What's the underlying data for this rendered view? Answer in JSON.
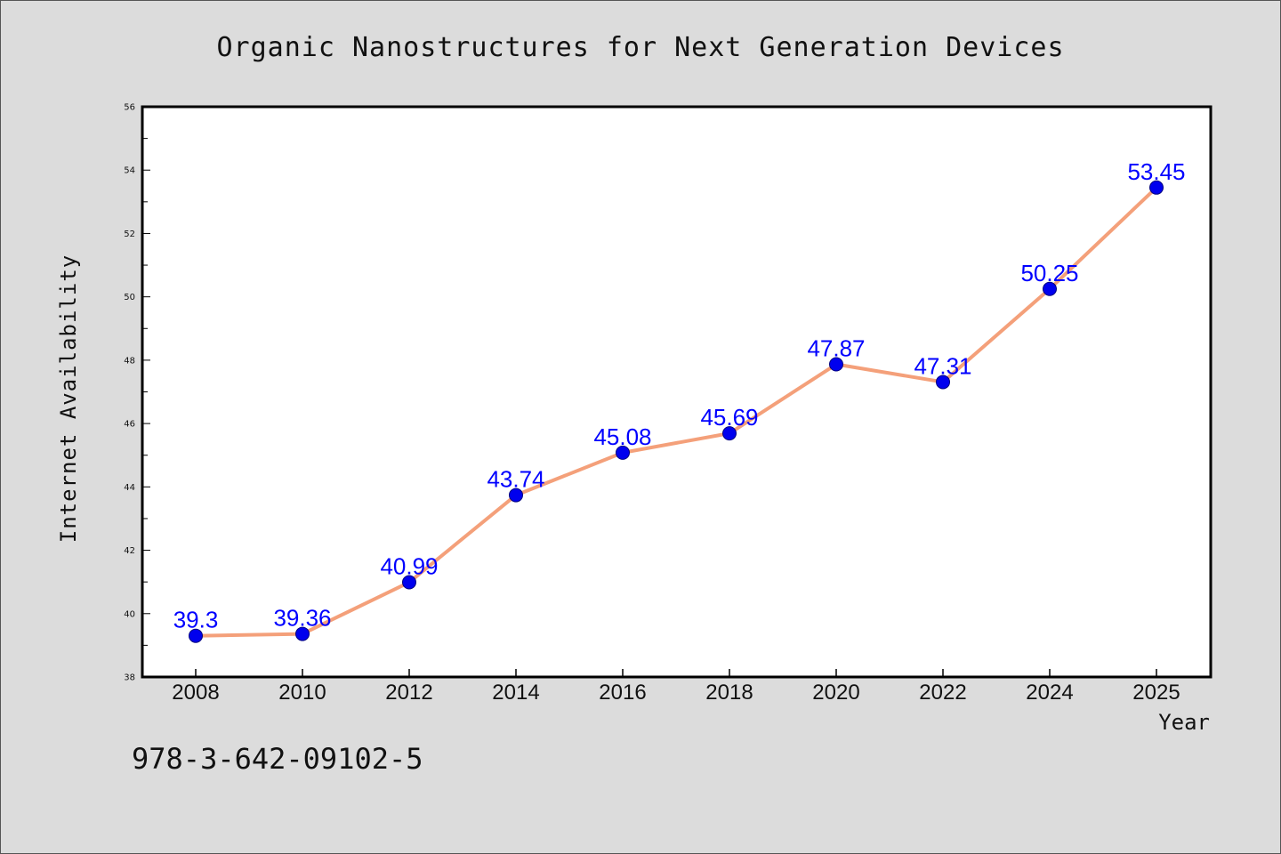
{
  "chart_data": {
    "type": "line",
    "title": "Organic Nanostructures for Next Generation Devices",
    "xlabel": "Year",
    "ylabel": "Internet Availability",
    "x": [
      2008,
      2010,
      2012,
      2014,
      2016,
      2018,
      2020,
      2022,
      2024,
      2025
    ],
    "series": [
      {
        "values": [
          39.3,
          39.36,
          40.99,
          43.74,
          45.08,
          45.69,
          47.87,
          47.31,
          50.25,
          53.45
        ],
        "labels": [
          "39.3",
          "39.36",
          "40.99",
          "43.74",
          "45.08",
          "45.69",
          "47.87",
          "47.31",
          "50.25",
          "53.45"
        ]
      }
    ],
    "xtick_labels": [
      "2008",
      "2010",
      "2012",
      "2014",
      "2016",
      "2018",
      "2020",
      "2022",
      "2024",
      "2025"
    ],
    "ytick_labels": [
      "38",
      "40",
      "42",
      "44",
      "46",
      "48",
      "50",
      "52",
      "54",
      "56"
    ],
    "ylim": [
      38,
      56
    ],
    "grid": false,
    "legend": "none",
    "annotation": "978-3-642-09102-5",
    "colors": {
      "background": "#dcdcdc",
      "plot_area": "#ffffff",
      "line": "#f4a07a",
      "marker": "#0000ee",
      "marker_edge": "#000080",
      "data_label": "#0000ff",
      "text": "#111111"
    }
  }
}
